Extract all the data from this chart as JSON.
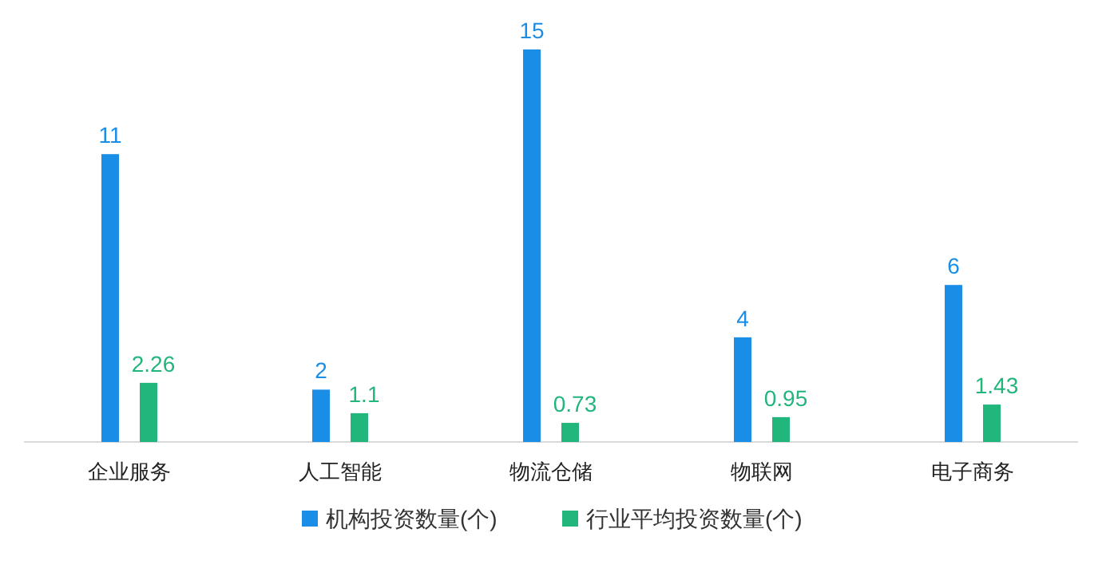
{
  "chart_data": {
    "type": "bar",
    "categories": [
      "企业服务",
      "人工智能",
      "物流仓储",
      "物联网",
      "电子商务"
    ],
    "series": [
      {
        "name": "机构投资数量(个)",
        "color": "#1a8ee6",
        "values": [
          11,
          2,
          15,
          4,
          6
        ]
      },
      {
        "name": "行业平均投资数量(个)",
        "color": "#22b57c",
        "values": [
          2.26,
          1.1,
          0.73,
          0.95,
          1.43
        ]
      }
    ],
    "data_labels": true,
    "legend": "bottom"
  }
}
